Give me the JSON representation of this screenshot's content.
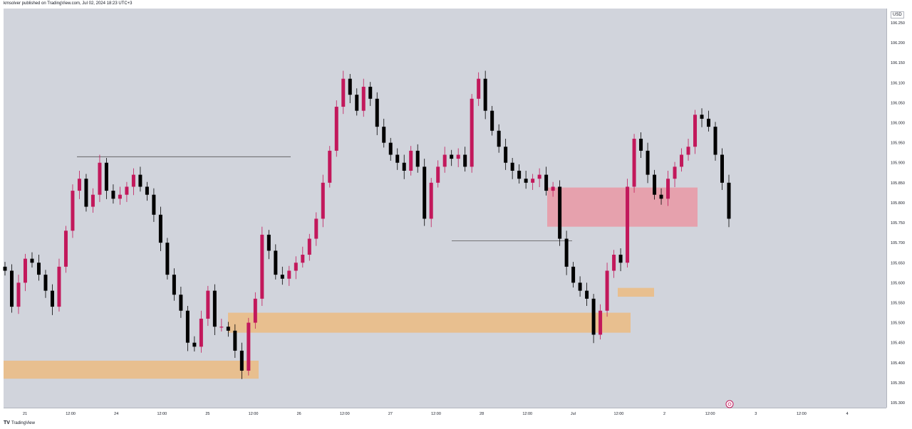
{
  "header": {
    "publisher_text": "kmsolver published on TradingView.com, Jul 02, 2024 18:23 UTC+3"
  },
  "footer": {
    "logo_text": "TradingView"
  },
  "colors": {
    "up": "#c2185b",
    "down": "#000000",
    "background": "#d1d4dc",
    "demand_zone": "#e8bf8f",
    "supply_zone": "#e6a1ad"
  },
  "chart_data": {
    "type": "candlestick",
    "currency": "USD",
    "ylim": [
      105.3,
      106.25
    ],
    "y_ticks": [
      "106.250",
      "106.200",
      "106.150",
      "106.100",
      "106.050",
      "106.000",
      "105.950",
      "105.900",
      "105.850",
      "105.800",
      "105.750",
      "105.700",
      "105.650",
      "105.600",
      "105.550",
      "105.500",
      "105.450",
      "105.400",
      "105.350",
      "105.300"
    ],
    "x_ticks": [
      "21",
      "12:00",
      "24",
      "12:00",
      "25",
      "12:00",
      "26",
      "12:00",
      "27",
      "12:00",
      "28",
      "12:00",
      "Jul",
      "12:00",
      "2",
      "12:00",
      "3",
      "12:00",
      "4"
    ],
    "close_series": [
      105.63,
      105.54,
      105.6,
      105.66,
      105.65,
      105.62,
      105.58,
      105.54,
      105.64,
      105.73,
      105.83,
      105.86,
      105.79,
      105.82,
      105.9,
      105.83,
      105.81,
      105.82,
      105.84,
      105.87,
      105.84,
      105.82,
      105.77,
      105.7,
      105.62,
      105.57,
      105.53,
      105.45,
      105.44,
      105.51,
      105.58,
      105.49,
      105.49,
      105.48,
      105.43,
      105.38,
      105.5,
      105.56,
      105.72,
      105.68,
      105.62,
      105.61,
      105.63,
      105.65,
      105.67,
      105.71,
      105.76,
      105.85,
      105.93,
      106.04,
      106.11,
      106.07,
      106.03,
      106.09,
      106.06,
      105.99,
      105.95,
      105.92,
      105.9,
      105.88,
      105.93,
      105.89,
      105.76,
      105.85,
      105.89,
      105.92,
      105.91,
      105.92,
      105.89,
      106.06,
      106.11,
      106.03,
      105.98,
      105.94,
      105.9,
      105.88,
      105.86,
      105.85,
      105.86,
      105.87,
      105.83,
      105.84,
      105.71,
      105.64,
      105.6,
      105.58,
      105.56,
      105.47,
      105.53,
      105.63,
      105.67,
      105.65,
      105.84,
      105.96,
      105.93,
      105.87,
      105.82,
      105.81,
      105.86,
      105.89,
      105.92,
      105.94,
      106.02,
      106.01,
      105.99,
      105.92,
      105.85,
      105.76
    ],
    "zones": [
      {
        "kind": "demand",
        "y_range": [
          105.36,
          105.405
        ]
      },
      {
        "kind": "demand",
        "y_range": [
          105.475,
          105.525
        ]
      },
      {
        "kind": "demand",
        "y_range": [
          105.565,
          105.587
        ]
      },
      {
        "kind": "supply",
        "y_range": [
          105.74,
          105.838
        ]
      }
    ],
    "levels": [
      105.915,
      105.705
    ]
  }
}
